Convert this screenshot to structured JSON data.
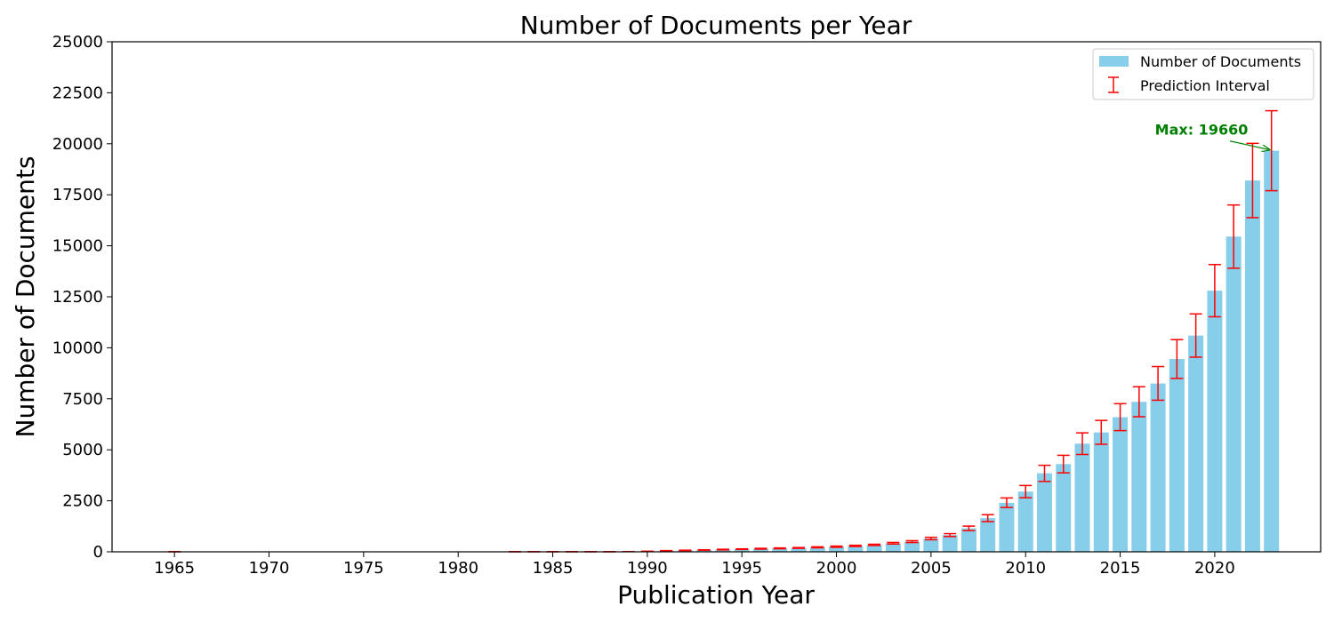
{
  "chart_data": {
    "type": "bar",
    "title": "Number of Documents per Year",
    "xlabel": "Publication Year",
    "ylabel": "Number of Documents",
    "ylim": [
      0,
      25000
    ],
    "yticks": [
      0,
      2500,
      5000,
      7500,
      10000,
      12500,
      15000,
      17500,
      20000,
      22500,
      25000
    ],
    "xticks": [
      1965,
      1970,
      1975,
      1980,
      1985,
      1990,
      1995,
      2000,
      2005,
      2010,
      2015,
      2020
    ],
    "xlim": [
      1961.7,
      2025.6
    ],
    "grid": false,
    "legend_position": "top-right",
    "series": [
      {
        "name": "Number of Documents",
        "color": "#87ceeb",
        "x": [
          1965,
          1983,
          1984,
          1985,
          1986,
          1987,
          1988,
          1989,
          1990,
          1991,
          1992,
          1993,
          1994,
          1995,
          1996,
          1997,
          1998,
          1999,
          2000,
          2001,
          2002,
          2003,
          2004,
          2005,
          2006,
          2007,
          2008,
          2009,
          2010,
          2011,
          2012,
          2013,
          2014,
          2015,
          2016,
          2017,
          2018,
          2019,
          2020,
          2021,
          2022,
          2023
        ],
        "values": [
          5,
          5,
          5,
          5,
          5,
          5,
          5,
          10,
          25,
          50,
          70,
          90,
          110,
          130,
          150,
          170,
          190,
          220,
          250,
          290,
          340,
          420,
          500,
          650,
          820,
          1150,
          1650,
          2400,
          2950,
          3850,
          4300,
          5300,
          5850,
          6600,
          7350,
          8250,
          9450,
          10600,
          12800,
          15450,
          18200,
          19660
        ]
      }
    ],
    "error_bars": {
      "name": "Prediction Interval",
      "color": "#ff0000",
      "lower": [
        5,
        5,
        5,
        5,
        5,
        5,
        5,
        10,
        20,
        40,
        60,
        80,
        95,
        115,
        130,
        150,
        170,
        195,
        220,
        260,
        310,
        380,
        455,
        590,
        750,
        1040,
        1480,
        2170,
        2650,
        3450,
        3870,
        4770,
        5270,
        5940,
        6620,
        7430,
        8500,
        9540,
        11520,
        13900,
        16380,
        17700
      ],
      "upper": [
        5,
        5,
        5,
        5,
        5,
        5,
        5,
        12,
        30,
        60,
        80,
        100,
        125,
        145,
        170,
        190,
        210,
        245,
        280,
        320,
        370,
        460,
        545,
        710,
        890,
        1260,
        1820,
        2640,
        3250,
        4240,
        4730,
        5830,
        6440,
        7260,
        8090,
        9080,
        10400,
        11660,
        14080,
        17000,
        20020,
        21620
      ]
    },
    "annotation": {
      "text": "Max: 19660",
      "color": "#008000",
      "x": 2023,
      "y": 19660,
      "text_x": 2019.3,
      "text_y": 20700
    }
  }
}
